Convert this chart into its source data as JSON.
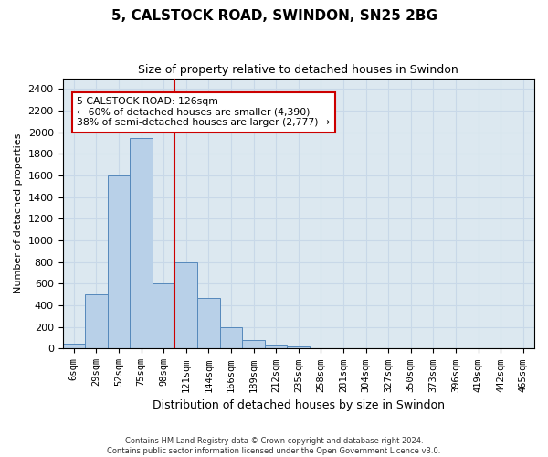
{
  "title": "5, CALSTOCK ROAD, SWINDON, SN25 2BG",
  "subtitle": "Size of property relative to detached houses in Swindon",
  "xlabel": "Distribution of detached houses by size in Swindon",
  "ylabel": "Number of detached properties",
  "footer1": "Contains HM Land Registry data © Crown copyright and database right 2024.",
  "footer2": "Contains public sector information licensed under the Open Government Licence v3.0.",
  "bin_labels": [
    "6sqm",
    "29sqm",
    "52sqm",
    "75sqm",
    "98sqm",
    "121sqm",
    "144sqm",
    "166sqm",
    "189sqm",
    "212sqm",
    "235sqm",
    "258sqm",
    "281sqm",
    "304sqm",
    "327sqm",
    "350sqm",
    "373sqm",
    "396sqm",
    "419sqm",
    "442sqm",
    "465sqm"
  ],
  "bar_values": [
    50,
    500,
    1600,
    1950,
    600,
    800,
    470,
    200,
    80,
    30,
    20,
    0,
    0,
    0,
    0,
    0,
    0,
    0,
    0,
    0,
    0
  ],
  "bar_color": "#b8d0e8",
  "bar_edge_color": "#5588bb",
  "property_line_color": "#cc0000",
  "property_line_x": 4.5,
  "ylim": [
    0,
    2500
  ],
  "yticks": [
    0,
    200,
    400,
    600,
    800,
    1000,
    1200,
    1400,
    1600,
    1800,
    2000,
    2200,
    2400
  ],
  "annotation_line1": "5 CALSTOCK ROAD: 126sqm",
  "annotation_line2": "← 60% of detached houses are smaller (4,390)",
  "annotation_line3": "38% of semi-detached houses are larger (2,777) →",
  "annotation_box_color": "#ffffff",
  "annotation_box_edge_color": "#cc0000",
  "grid_color": "#c8d8e8",
  "background_color": "#dce8f0"
}
